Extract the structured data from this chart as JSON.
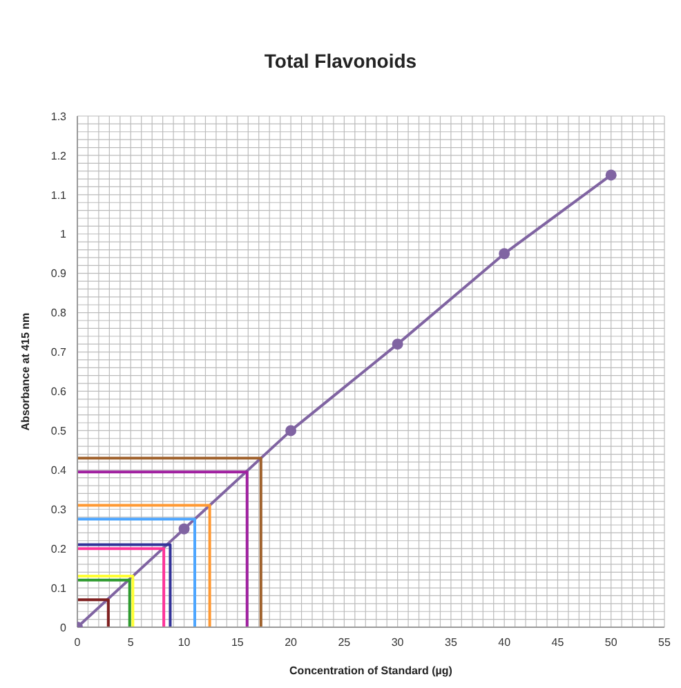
{
  "chart_data": {
    "type": "line",
    "title": "Total Flavonoids",
    "xlabel": "Concentration of Standard  (µg)",
    "ylabel": "Absorbance at 415 nm",
    "xlim": [
      0,
      55
    ],
    "ylim": [
      0,
      1.3
    ],
    "xticks": [
      0,
      {
        "value": 1,
        "label": null
      },
      {
        "value": 2,
        "label": null
      },
      {
        "value": 3,
        "label": null
      },
      {
        "value": 4,
        "label": null
      },
      5,
      {
        "value": 6,
        "label": null
      },
      {
        "value": 7,
        "label": null
      },
      {
        "value": 8,
        "label": null
      },
      {
        "value": 9,
        "label": null
      },
      10,
      {
        "value": 11,
        "label": null
      },
      {
        "value": 12,
        "label": null
      },
      {
        "value": 13,
        "label": null
      },
      {
        "value": 14,
        "label": null
      },
      15,
      {
        "value": 16,
        "label": null
      },
      {
        "value": 17,
        "label": null
      },
      {
        "value": 18,
        "label": null
      },
      {
        "value": 19,
        "label": null
      },
      20,
      {
        "value": 21,
        "label": null
      },
      {
        "value": 22,
        "label": null
      },
      {
        "value": 23,
        "label": null
      },
      {
        "value": 24,
        "label": null
      },
      25,
      {
        "value": 26,
        "label": null
      },
      {
        "value": 27,
        "label": null
      },
      {
        "value": 28,
        "label": null
      },
      {
        "value": 29,
        "label": null
      },
      30,
      {
        "value": 31,
        "label": null
      },
      {
        "value": 32,
        "label": null
      },
      {
        "value": 33,
        "label": null
      },
      {
        "value": 34,
        "label": null
      },
      35,
      {
        "value": 36,
        "label": null
      },
      {
        "value": 37,
        "label": null
      },
      {
        "value": 38,
        "label": null
      },
      {
        "value": 39,
        "label": null
      },
      40,
      {
        "value": 41,
        "label": null
      },
      {
        "value": 42,
        "label": null
      },
      {
        "value": 43,
        "label": null
      },
      {
        "value": 44,
        "label": null
      },
      45,
      {
        "value": 46,
        "label": null
      },
      {
        "value": 47,
        "label": null
      },
      {
        "value": 48,
        "label": null
      },
      {
        "value": 49,
        "label": null
      },
      50,
      {
        "value": 51,
        "label": null
      },
      {
        "value": 52,
        "label": null
      },
      {
        "value": 53,
        "label": null
      },
      {
        "value": 54,
        "label": null
      },
      55
    ],
    "yticks": [
      0,
      {
        "value": 0.02,
        "label": null
      },
      {
        "value": 0.04,
        "label": null
      },
      {
        "value": 0.06,
        "label": null
      },
      {
        "value": 0.08,
        "label": null
      },
      0.1,
      {
        "value": 0.12,
        "label": null
      },
      {
        "value": 0.14,
        "label": null
      },
      {
        "value": 0.16,
        "label": null
      },
      {
        "value": 0.18,
        "label": null
      },
      0.2,
      {
        "value": 0.22,
        "label": null
      },
      {
        "value": 0.24,
        "label": null
      },
      {
        "value": 0.26,
        "label": null
      },
      {
        "value": 0.28,
        "label": null
      },
      0.3,
      {
        "value": 0.32,
        "label": null
      },
      {
        "value": 0.34,
        "label": null
      },
      {
        "value": 0.36,
        "label": null
      },
      {
        "value": 0.38,
        "label": null
      },
      0.4,
      {
        "value": 0.42,
        "label": null
      },
      {
        "value": 0.44,
        "label": null
      },
      {
        "value": 0.46,
        "label": null
      },
      {
        "value": 0.48,
        "label": null
      },
      0.5,
      {
        "value": 0.52,
        "label": null
      },
      {
        "value": 0.54,
        "label": null
      },
      {
        "value": 0.56,
        "label": null
      },
      {
        "value": 0.58,
        "label": null
      },
      0.6,
      {
        "value": 0.62,
        "label": null
      },
      {
        "value": 0.64,
        "label": null
      },
      {
        "value": 0.66,
        "label": null
      },
      {
        "value": 0.68,
        "label": null
      },
      0.7,
      {
        "value": 0.72,
        "label": null
      },
      {
        "value": 0.74,
        "label": null
      },
      {
        "value": 0.76,
        "label": null
      },
      {
        "value": 0.78,
        "label": null
      },
      0.8,
      {
        "value": 0.82,
        "label": null
      },
      {
        "value": 0.84,
        "label": null
      },
      {
        "value": 0.86,
        "label": null
      },
      {
        "value": 0.88,
        "label": null
      },
      0.9,
      {
        "value": 0.92,
        "label": null
      },
      {
        "value": 0.94,
        "label": null
      },
      {
        "value": 0.96,
        "label": null
      },
      {
        "value": 0.98,
        "label": null
      },
      1,
      {
        "value": 1.02,
        "label": null
      },
      {
        "value": 1.04,
        "label": null
      },
      {
        "value": 1.06,
        "label": null
      },
      {
        "value": 1.08,
        "label": null
      },
      1.1,
      {
        "value": 1.12,
        "label": null
      },
      {
        "value": 1.14,
        "label": null
      },
      {
        "value": 1.16,
        "label": null
      },
      {
        "value": 1.18,
        "label": null
      },
      1.2,
      {
        "value": 1.22,
        "label": null
      },
      {
        "value": 1.24,
        "label": null
      },
      {
        "value": 1.26,
        "label": null
      },
      {
        "value": 1.28,
        "label": null
      },
      1.3
    ],
    "grid": true,
    "marker": "circle",
    "line_style": "solid",
    "x": [
      0,
      10,
      20,
      30,
      40,
      50
    ],
    "series": [
      {
        "color": "#8064a2",
        "values": [
          0,
          0.25,
          0.5,
          0.72,
          0.95,
          1.15
        ]
      },
      {
        "color": "#7f1f1f",
        "x": [
          0,
          2.9,
          2.9
        ],
        "values": [
          0.07,
          0.07,
          0
        ],
        "marker": "none"
      },
      {
        "color": "#2e9b2e",
        "x": [
          0,
          4.9,
          4.9
        ],
        "values": [
          0.12,
          0.12,
          0
        ],
        "marker": "none"
      },
      {
        "color": "#ffff33",
        "x": [
          0,
          5.2,
          5.2
        ],
        "values": [
          0.13,
          0.13,
          0
        ],
        "marker": "none"
      },
      {
        "color": "#ff3399",
        "x": [
          0,
          8.1,
          8.1
        ],
        "values": [
          0.2,
          0.2,
          0
        ],
        "marker": "none"
      },
      {
        "color": "#333399",
        "x": [
          0,
          8.7,
          8.7
        ],
        "values": [
          0.21,
          0.21,
          0
        ],
        "marker": "none"
      },
      {
        "color": "#4da6ff",
        "x": [
          0,
          11,
          11
        ],
        "values": [
          0.275,
          0.275,
          0
        ],
        "marker": "none"
      },
      {
        "color": "#ff9933",
        "x": [
          0,
          12.4,
          12.4
        ],
        "values": [
          0.31,
          0.31,
          0
        ],
        "marker": "none"
      },
      {
        "color": "#a020a0",
        "x": [
          0,
          15.9,
          15.9
        ],
        "values": [
          0.395,
          0.395,
          0
        ],
        "marker": "none"
      },
      {
        "color": "#a0622d",
        "x": [
          0,
          17.2,
          17.2
        ],
        "values": [
          0.43,
          0.43,
          0
        ],
        "marker": "none"
      }
    ]
  }
}
